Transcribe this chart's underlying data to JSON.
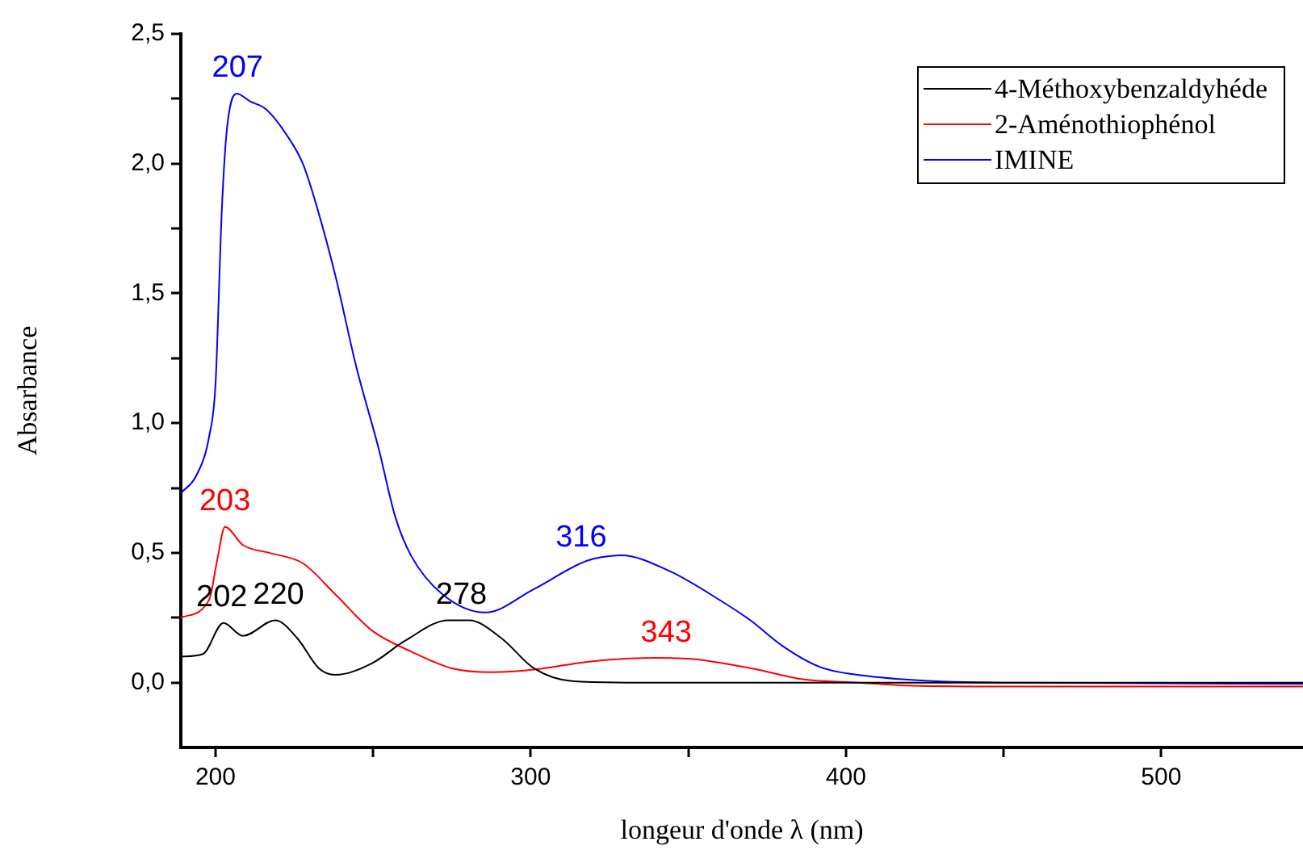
{
  "chart_data": {
    "type": "line",
    "xlabel": "longeur d'onde λ (nm)",
    "ylabel": "Absarbance",
    "xlim": [
      189,
      545
    ],
    "ylim": [
      -0.25,
      2.5
    ],
    "xticks": [
      200,
      {
        "value": 250,
        "label": null
      },
      300,
      {
        "value": 350,
        "label": null
      },
      400,
      {
        "value": 450,
        "label": null
      },
      500
    ],
    "yticks": [
      {
        "value": 0,
        "label": "0,0"
      },
      {
        "value": 0.25,
        "label": null
      },
      {
        "value": 0.5,
        "label": "0,5"
      },
      {
        "value": 0.75,
        "label": null
      },
      {
        "value": 1,
        "label": "1,0"
      },
      {
        "value": 1.25,
        "label": null
      },
      {
        "value": 1.5,
        "label": "1,5"
      },
      {
        "value": 1.75,
        "label": null
      },
      {
        "value": 2,
        "label": "2,0"
      },
      {
        "value": 2.25,
        "label": null
      },
      {
        "value": 2.5,
        "label": "2,5"
      }
    ],
    "grid": false,
    "legend": "top right",
    "marker": "none",
    "line_style": "solid",
    "series": [
      {
        "name": "4-Méthoxybenzaldyhéde",
        "color": "#000000",
        "x": [
          189,
          196,
          202.5,
          208.7,
          219,
          226,
          232.8,
          238,
          249.7,
          260,
          273.8,
          280.5,
          290.8,
          301,
          313,
          335,
          400,
          545
        ],
        "values": [
          0.1,
          0.11,
          0.23,
          0.18,
          0.24,
          0.17,
          0.055,
          0.03,
          0.075,
          0.16,
          0.24,
          0.24,
          0.17,
          0.055,
          0.006,
          0,
          0,
          0
        ]
      },
      {
        "name": "2-Aménothiophénol",
        "color": "#ff0000",
        "x": [
          189,
          198,
          200.5,
          203,
          208.7,
          217,
          227.7,
          238,
          249.7,
          262,
          275,
          287.7,
          301,
          318,
          339,
          352,
          370,
          386.7,
          403.6,
          421,
          450,
          545
        ],
        "values": [
          0.25,
          0.32,
          0.47,
          0.6,
          0.53,
          0.5,
          0.46,
          0.34,
          0.2,
          0.12,
          0.055,
          0.04,
          0.05,
          0.08,
          0.095,
          0.09,
          0.055,
          0.012,
          0,
          -0.012,
          -0.015,
          -0.015
        ]
      },
      {
        "name": "IMINE",
        "color": "#0000ff",
        "x": [
          189,
          194,
          198,
          200,
          202,
          203.6,
          206.7,
          211,
          216,
          222.6,
          227.7,
          232,
          238,
          244.6,
          251.8,
          257,
          262,
          272,
          285.6,
          301,
          318,
          328.7,
          344,
          361,
          369.7,
          380,
          391.8,
          407,
          429,
          450,
          545
        ],
        "values": [
          0.73,
          0.8,
          0.95,
          1.15,
          1.82,
          2.13,
          2.27,
          2.24,
          2.21,
          2.11,
          2.0,
          1.84,
          1.57,
          1.22,
          0.9,
          0.64,
          0.49,
          0.34,
          0.27,
          0.36,
          0.47,
          0.49,
          0.43,
          0.31,
          0.24,
          0.14,
          0.06,
          0.025,
          0.005,
          0,
          -0.005
        ]
      }
    ],
    "annotations": [
      {
        "text": "207",
        "x": 207,
        "y": 2.27
      },
      {
        "text": "203",
        "x": 203,
        "y": 0.6
      },
      {
        "text": "202",
        "x": 202,
        "y": 0.23
      },
      {
        "text": "220",
        "x": 220,
        "y": 0.24
      },
      {
        "text": "278",
        "x": 278,
        "y": 0.24
      },
      {
        "text": "316",
        "x": 316,
        "y": 0.46
      },
      {
        "text": "343",
        "x": 343,
        "y": 0.095
      }
    ]
  }
}
